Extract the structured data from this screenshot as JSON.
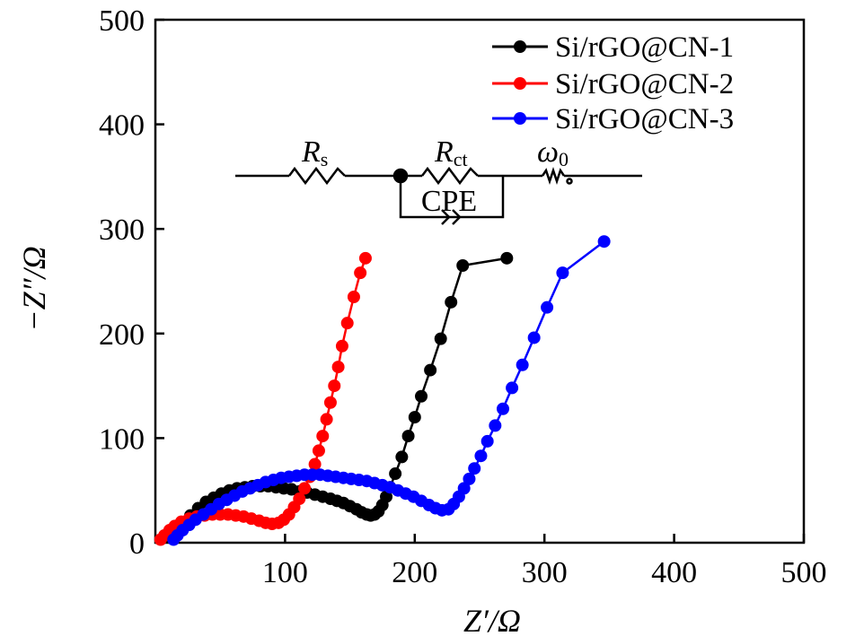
{
  "chart_data": {
    "type": "scatter",
    "title": "",
    "xlabel": "Z′/Ω",
    "ylabel": "−Z″/Ω",
    "xlim": [
      0,
      500
    ],
    "ylim": [
      0,
      500
    ],
    "x_ticks": [
      "100",
      "200",
      "300",
      "400",
      "500"
    ],
    "y_ticks": [
      "0",
      "100",
      "200",
      "300",
      "400",
      "500"
    ],
    "legend_position": "top-right",
    "grid": false,
    "series": [
      {
        "name": "Si/rGO@CN-1",
        "color": "#000000",
        "points": [
          [
            12,
            5
          ],
          [
            16,
            12
          ],
          [
            21,
            19
          ],
          [
            27,
            26
          ],
          [
            33,
            33
          ],
          [
            39,
            39
          ],
          [
            45,
            43
          ],
          [
            51,
            47
          ],
          [
            57,
            50
          ],
          [
            63,
            52
          ],
          [
            69,
            53
          ],
          [
            75,
            54
          ],
          [
            81,
            54
          ],
          [
            87,
            54
          ],
          [
            93,
            53
          ],
          [
            99,
            52
          ],
          [
            105,
            51
          ],
          [
            111,
            49
          ],
          [
            117,
            48
          ],
          [
            123,
            46
          ],
          [
            129,
            44
          ],
          [
            135,
            42
          ],
          [
            140,
            40
          ],
          [
            145,
            38
          ],
          [
            150,
            35
          ],
          [
            155,
            32
          ],
          [
            159,
            29
          ],
          [
            163,
            27
          ],
          [
            166,
            26
          ],
          [
            169,
            27
          ],
          [
            172,
            30
          ],
          [
            175,
            36
          ],
          [
            178,
            44
          ],
          [
            181,
            53
          ],
          [
            185,
            66
          ],
          [
            190,
            82
          ],
          [
            195,
            102
          ],
          [
            200,
            120
          ],
          [
            205,
            140
          ],
          [
            212,
            165
          ],
          [
            220,
            195
          ],
          [
            228,
            230
          ],
          [
            237,
            265
          ],
          [
            271,
            272
          ]
        ]
      },
      {
        "name": "Si/rGO@CN-2",
        "color": "#ff0000",
        "points": [
          [
            4,
            3
          ],
          [
            7,
            7
          ],
          [
            11,
            12
          ],
          [
            15,
            16
          ],
          [
            20,
            20
          ],
          [
            26,
            23
          ],
          [
            32,
            25
          ],
          [
            38,
            26
          ],
          [
            44,
            27
          ],
          [
            50,
            27
          ],
          [
            56,
            27
          ],
          [
            62,
            26
          ],
          [
            68,
            25
          ],
          [
            74,
            23
          ],
          [
            80,
            21
          ],
          [
            85,
            19
          ],
          [
            90,
            18
          ],
          [
            95,
            19
          ],
          [
            99,
            22
          ],
          [
            103,
            27
          ],
          [
            107,
            34
          ],
          [
            111,
            42
          ],
          [
            115,
            52
          ],
          [
            119,
            63
          ],
          [
            123,
            75
          ],
          [
            126,
            88
          ],
          [
            129,
            102
          ],
          [
            132,
            118
          ],
          [
            135,
            134
          ],
          [
            138,
            150
          ],
          [
            141,
            168
          ],
          [
            144,
            188
          ],
          [
            148,
            210
          ],
          [
            153,
            235
          ],
          [
            158,
            258
          ],
          [
            162,
            272
          ]
        ]
      },
      {
        "name": "Si/rGO@CN-3",
        "color": "#0000ff",
        "points": [
          [
            14,
            3
          ],
          [
            17,
            7
          ],
          [
            21,
            12
          ],
          [
            26,
            17
          ],
          [
            31,
            22
          ],
          [
            37,
            27
          ],
          [
            43,
            32
          ],
          [
            49,
            37
          ],
          [
            55,
            41
          ],
          [
            61,
            45
          ],
          [
            67,
            49
          ],
          [
            73,
            52
          ],
          [
            79,
            55
          ],
          [
            85,
            58
          ],
          [
            91,
            60
          ],
          [
            97,
            62
          ],
          [
            103,
            63
          ],
          [
            109,
            64
          ],
          [
            115,
            65
          ],
          [
            121,
            65
          ],
          [
            127,
            65
          ],
          [
            133,
            64
          ],
          [
            139,
            63
          ],
          [
            145,
            62
          ],
          [
            151,
            61
          ],
          [
            157,
            60
          ],
          [
            163,
            59
          ],
          [
            169,
            57
          ],
          [
            175,
            55
          ],
          [
            181,
            53
          ],
          [
            187,
            50
          ],
          [
            193,
            47
          ],
          [
            199,
            44
          ],
          [
            205,
            40
          ],
          [
            211,
            36
          ],
          [
            216,
            33
          ],
          [
            221,
            31
          ],
          [
            226,
            32
          ],
          [
            230,
            37
          ],
          [
            234,
            44
          ],
          [
            238,
            52
          ],
          [
            242,
            61
          ],
          [
            246,
            71
          ],
          [
            251,
            83
          ],
          [
            256,
            97
          ],
          [
            262,
            112
          ],
          [
            268,
            128
          ],
          [
            275,
            148
          ],
          [
            283,
            170
          ],
          [
            292,
            196
          ],
          [
            302,
            225
          ],
          [
            314,
            258
          ],
          [
            346,
            288
          ]
        ]
      }
    ],
    "annotations": {
      "circuit_labels": [
        "Rs",
        "Rct",
        "ω0",
        "CPE"
      ]
    }
  },
  "circuit": {
    "rs_main": "R",
    "rs_sub": "s",
    "rct_main": "R",
    "rct_sub": "ct",
    "w_main": "ω",
    "w_sub": "0",
    "cpe": "CPE"
  },
  "legend": [
    "Si/rGO@CN-1",
    "Si/rGO@CN-2",
    "Si/rGO@CN-3"
  ]
}
